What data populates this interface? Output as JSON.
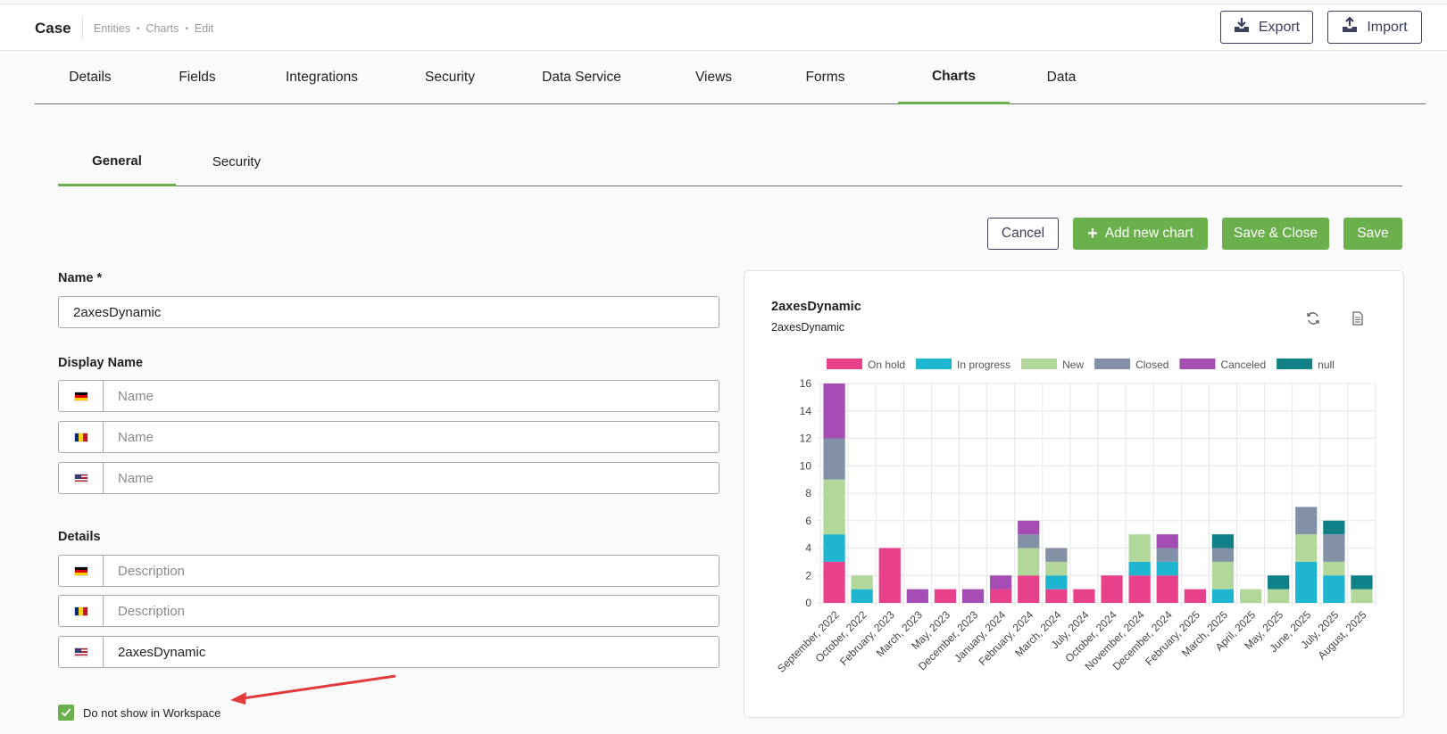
{
  "header": {
    "title": "Case",
    "breadcrumb": [
      "Entities",
      "Charts",
      "Edit"
    ],
    "export_label": "Export",
    "import_label": "Import"
  },
  "tabs": [
    {
      "label": "Details"
    },
    {
      "label": "Fields"
    },
    {
      "label": "Integrations"
    },
    {
      "label": "Security"
    },
    {
      "label": "Data Service"
    },
    {
      "label": "Views"
    },
    {
      "label": "Forms"
    },
    {
      "label": "Charts",
      "active": true
    },
    {
      "label": "Data"
    }
  ],
  "subtabs": [
    {
      "label": "General",
      "active": true
    },
    {
      "label": "Security"
    }
  ],
  "actions": {
    "cancel": "Cancel",
    "add_new_chart": "Add new chart",
    "save_close": "Save & Close",
    "save": "Save"
  },
  "form": {
    "name_label": "Name *",
    "name_value": "2axesDynamic",
    "display_name_label": "Display Name",
    "display_name_fields": [
      {
        "flag": "de",
        "placeholder": "Name",
        "value": ""
      },
      {
        "flag": "ro",
        "placeholder": "Name",
        "value": ""
      },
      {
        "flag": "us",
        "placeholder": "Name",
        "value": ""
      }
    ],
    "details_label": "Details",
    "details_fields": [
      {
        "flag": "de",
        "placeholder": "Description",
        "value": ""
      },
      {
        "flag": "ro",
        "placeholder": "Description",
        "value": ""
      },
      {
        "flag": "us",
        "placeholder": "Description",
        "value": "2axesDynamic"
      }
    ],
    "hide_workspace_checked": true,
    "hide_workspace_label": "Do not show in Workspace"
  },
  "preview": {
    "title": "2axesDynamic",
    "subtitle": "2axesDynamic",
    "icons": [
      "refresh-icon",
      "document-icon"
    ]
  },
  "colors": {
    "accent": "#6ab04c",
    "navy": "#3b3f5c"
  },
  "chart_data": {
    "type": "bar",
    "stacked": true,
    "categories": [
      "September, 2022",
      "October, 2022",
      "February, 2023",
      "March, 2023",
      "May, 2023",
      "December, 2023",
      "January, 2024",
      "February, 2024",
      "March, 2024",
      "July, 2024",
      "October, 2024",
      "November, 2024",
      "December, 2024",
      "February, 2025",
      "March, 2025",
      "April, 2025",
      "May, 2025",
      "June, 2025",
      "July, 2025",
      "August, 2025"
    ],
    "series": [
      {
        "name": "On hold",
        "color": "#e8418c",
        "values": [
          3,
          0,
          4,
          0,
          1,
          0,
          1,
          2,
          1,
          1,
          2,
          2,
          2,
          1,
          0,
          0,
          0,
          0,
          0,
          0
        ]
      },
      {
        "name": "In progress",
        "color": "#1eb5d1",
        "values": [
          2,
          1,
          0,
          0,
          0,
          0,
          0,
          0,
          1,
          0,
          0,
          1,
          1,
          0,
          1,
          0,
          0,
          3,
          2,
          0
        ]
      },
      {
        "name": "New",
        "color": "#b1d89a",
        "values": [
          4,
          1,
          0,
          0,
          0,
          0,
          0,
          2,
          1,
          0,
          0,
          2,
          0,
          0,
          2,
          1,
          1,
          2,
          1,
          1
        ]
      },
      {
        "name": "Closed",
        "color": "#8391a8",
        "values": [
          3,
          0,
          0,
          0,
          0,
          0,
          0,
          1,
          1,
          0,
          0,
          0,
          1,
          0,
          1,
          0,
          0,
          2,
          2,
          0
        ]
      },
      {
        "name": "Canceled",
        "color": "#a64db5",
        "values": [
          4,
          0,
          0,
          1,
          0,
          1,
          1,
          1,
          0,
          0,
          0,
          0,
          1,
          0,
          0,
          0,
          0,
          0,
          0,
          0
        ]
      },
      {
        "name": "null",
        "color": "#0e8086",
        "values": [
          0,
          0,
          0,
          0,
          0,
          0,
          0,
          0,
          0,
          0,
          0,
          0,
          0,
          0,
          1,
          0,
          1,
          0,
          1,
          1
        ]
      }
    ],
    "ylim": [
      0,
      16
    ],
    "yticks": [
      0,
      2,
      4,
      6,
      8,
      10,
      12,
      14,
      16
    ],
    "grid": true,
    "legend": "top"
  }
}
